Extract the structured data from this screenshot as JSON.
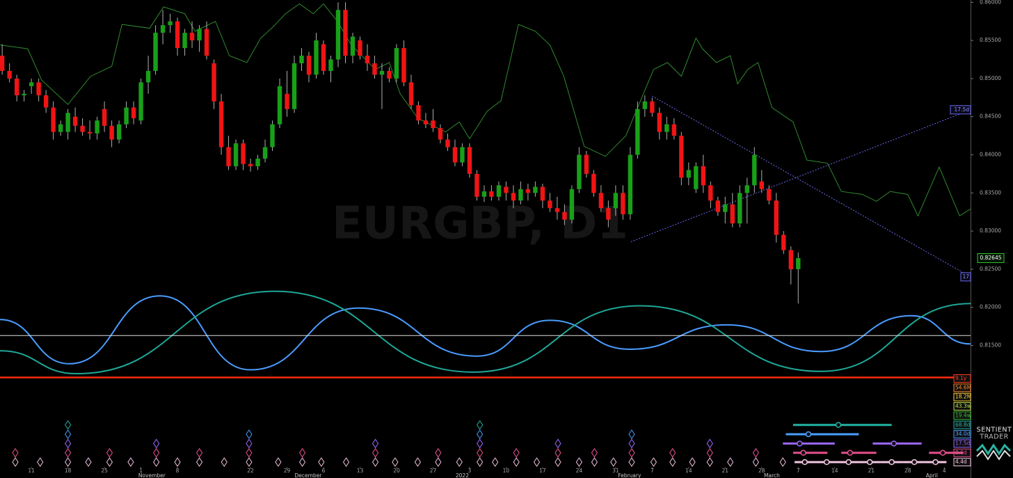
{
  "chart_data": {
    "type": "candlestick",
    "watermark": "EURGBP, D1",
    "logo": {
      "line1": "SENTIENT",
      "line2": "TRADER"
    },
    "up_color": "#18a018",
    "down_color": "#f01414",
    "xlim": [
      -0.3,
      132.6
    ],
    "ylim": [
      0.8103,
      0.8603
    ],
    "yticks": [
      {
        "value": 0.86,
        "label": "0.86000"
      },
      {
        "value": 0.855,
        "label": "0.85500"
      },
      {
        "value": 0.85,
        "label": "0.85000"
      },
      {
        "value": 0.845,
        "label": "0.84500"
      },
      {
        "value": 0.84,
        "label": "0.84000"
      },
      {
        "value": 0.835,
        "label": "0.83500"
      },
      {
        "value": 0.83,
        "label": "0.83000"
      },
      {
        "value": 0.825,
        "label": "0.82500"
      },
      {
        "value": 0.82,
        "label": "0.82000"
      },
      {
        "value": 0.815,
        "label": "0.81500"
      }
    ],
    "xticks": [
      {
        "value": 4,
        "label": "11"
      },
      {
        "value": 9,
        "label": "18"
      },
      {
        "value": 14,
        "label": "25"
      },
      {
        "value": 19,
        "label": "1"
      },
      {
        "value": 24,
        "label": "8"
      },
      {
        "value": 34,
        "label": "22"
      },
      {
        "value": 39,
        "label": "29"
      },
      {
        "value": 44,
        "label": "6"
      },
      {
        "value": 49,
        "label": "13"
      },
      {
        "value": 54,
        "label": "20"
      },
      {
        "value": 59,
        "label": "27"
      },
      {
        "value": 64,
        "label": "3"
      },
      {
        "value": 69,
        "label": "10"
      },
      {
        "value": 74,
        "label": "17"
      },
      {
        "value": 79,
        "label": "24"
      },
      {
        "value": 84,
        "label": "31"
      },
      {
        "value": 89,
        "label": "7"
      },
      {
        "value": 94,
        "label": "14"
      },
      {
        "value": 99,
        "label": "21"
      },
      {
        "value": 104,
        "label": "28"
      },
      {
        "value": 109,
        "label": "7"
      },
      {
        "value": 114,
        "label": "14"
      },
      {
        "value": 119,
        "label": "21"
      },
      {
        "value": 124,
        "label": "28"
      },
      {
        "value": 129,
        "label": "4"
      }
    ],
    "xticks_major": [
      {
        "value": 20.5,
        "label": "November"
      },
      {
        "value": 41.9,
        "label": "December"
      },
      {
        "value": 63,
        "label": "2022"
      },
      {
        "value": 85.9,
        "label": "February"
      },
      {
        "value": 105.4,
        "label": "March"
      },
      {
        "value": 127.3,
        "label": "April"
      }
    ],
    "open": [
      0.853,
      0.851,
      0.85,
      0.8478,
      0.849,
      0.8495,
      0.8478,
      0.8462,
      0.843,
      0.843,
      0.845,
      0.8438,
      0.843,
      0.8428,
      0.846,
      0.8438,
      0.842,
      0.844,
      0.8462,
      0.8445,
      0.8495,
      0.851,
      0.856,
      0.857,
      0.8575,
      0.854,
      0.856,
      0.855,
      0.8565,
      0.852,
      0.847,
      0.841,
      0.8385,
      0.8415,
      0.8388,
      0.8385,
      0.8395,
      0.841,
      0.844,
      0.848,
      0.846,
      0.852,
      0.853,
      0.8505,
      0.8545,
      0.851,
      0.8525,
      0.859,
      0.853,
      0.855,
      0.853,
      0.852,
      0.8505,
      0.851,
      0.85,
      0.854,
      0.8495,
      0.8465,
      0.8445,
      0.8445,
      0.8435,
      0.842,
      0.841,
      0.839,
      0.841,
      0.8375,
      0.8345,
      0.8352,
      0.8345,
      0.8358,
      0.835,
      0.834,
      0.8355,
      0.835,
      0.8358,
      0.834,
      0.833,
      0.8325,
      0.8315,
      0.8355,
      0.84,
      0.8375,
      0.835,
      0.833,
      0.833,
      0.835,
      0.8322,
      0.84,
      0.846,
      0.847,
      0.8455,
      0.843,
      0.844,
      0.8425,
      0.837,
      0.8355,
      0.8385,
      0.836,
      0.834,
      0.8325,
      0.8335,
      0.831,
      0.835,
      0.836,
      0.8365,
      0.8355,
      0.834,
      0.8295,
      0.8275,
      0.825
    ],
    "high": [
      0.8545,
      0.852,
      0.8505,
      0.8485,
      0.85,
      0.85,
      0.8485,
      0.847,
      0.8445,
      0.846,
      0.8462,
      0.8448,
      0.8445,
      0.845,
      0.847,
      0.8445,
      0.8445,
      0.847,
      0.847,
      0.85,
      0.853,
      0.857,
      0.859,
      0.8585,
      0.858,
      0.8565,
      0.8575,
      0.857,
      0.8575,
      0.8525,
      0.848,
      0.8425,
      0.842,
      0.842,
      0.8395,
      0.84,
      0.842,
      0.8445,
      0.85,
      0.851,
      0.853,
      0.854,
      0.8535,
      0.856,
      0.855,
      0.853,
      0.86,
      0.86,
      0.856,
      0.8555,
      0.8545,
      0.853,
      0.852,
      0.8515,
      0.8545,
      0.855,
      0.8505,
      0.847,
      0.8455,
      0.846,
      0.844,
      0.8428,
      0.842,
      0.8415,
      0.8415,
      0.838,
      0.836,
      0.836,
      0.8365,
      0.8365,
      0.836,
      0.8365,
      0.8362,
      0.8365,
      0.8362,
      0.835,
      0.8345,
      0.8335,
      0.836,
      0.841,
      0.8405,
      0.838,
      0.836,
      0.834,
      0.836,
      0.836,
      0.841,
      0.847,
      0.8478,
      0.8475,
      0.8462,
      0.845,
      0.8448,
      0.843,
      0.839,
      0.839,
      0.84,
      0.8365,
      0.8345,
      0.8345,
      0.835,
      0.836,
      0.837,
      0.841,
      0.838,
      0.836,
      0.835,
      0.83,
      0.828,
      0.8272
    ],
    "low": [
      0.8505,
      0.8495,
      0.847,
      0.847,
      0.848,
      0.847,
      0.8455,
      0.842,
      0.8425,
      0.842,
      0.843,
      0.8425,
      0.842,
      0.842,
      0.843,
      0.841,
      0.8415,
      0.8435,
      0.844,
      0.844,
      0.848,
      0.8505,
      0.8545,
      0.856,
      0.853,
      0.853,
      0.854,
      0.8535,
      0.8525,
      0.846,
      0.84,
      0.838,
      0.838,
      0.838,
      0.8378,
      0.838,
      0.839,
      0.8405,
      0.8435,
      0.845,
      0.8455,
      0.851,
      0.8495,
      0.85,
      0.8505,
      0.8495,
      0.8515,
      0.852,
      0.852,
      0.8525,
      0.851,
      0.85,
      0.846,
      0.8495,
      0.8495,
      0.849,
      0.846,
      0.844,
      0.8435,
      0.843,
      0.8415,
      0.8405,
      0.8385,
      0.8385,
      0.837,
      0.834,
      0.8338,
      0.834,
      0.834,
      0.834,
      0.833,
      0.8335,
      0.834,
      0.8345,
      0.833,
      0.8325,
      0.8315,
      0.8308,
      0.831,
      0.835,
      0.837,
      0.8345,
      0.8325,
      0.8305,
      0.832,
      0.8315,
      0.8315,
      0.8395,
      0.845,
      0.845,
      0.842,
      0.842,
      0.842,
      0.836,
      0.836,
      0.835,
      0.835,
      0.833,
      0.832,
      0.831,
      0.8305,
      0.8305,
      0.831,
      0.835,
      0.835,
      0.8335,
      0.8285,
      0.827,
      0.823,
      0.8205
    ],
    "close": [
      0.851,
      0.85,
      0.8478,
      0.848,
      0.8495,
      0.8478,
      0.8462,
      0.843,
      0.844,
      0.8455,
      0.8438,
      0.843,
      0.8428,
      0.8445,
      0.8438,
      0.842,
      0.844,
      0.8462,
      0.8448,
      0.8495,
      0.851,
      0.856,
      0.857,
      0.8575,
      0.854,
      0.856,
      0.855,
      0.8565,
      0.853,
      0.847,
      0.841,
      0.8385,
      0.8415,
      0.8388,
      0.8385,
      0.8395,
      0.841,
      0.844,
      0.849,
      0.846,
      0.852,
      0.853,
      0.8505,
      0.855,
      0.851,
      0.8525,
      0.859,
      0.853,
      0.8555,
      0.853,
      0.852,
      0.8505,
      0.851,
      0.85,
      0.854,
      0.8495,
      0.8465,
      0.8445,
      0.844,
      0.8435,
      0.842,
      0.841,
      0.839,
      0.841,
      0.8375,
      0.8345,
      0.8352,
      0.8345,
      0.836,
      0.835,
      0.834,
      0.8355,
      0.835,
      0.8358,
      0.834,
      0.833,
      0.8325,
      0.8315,
      0.8355,
      0.84,
      0.8375,
      0.835,
      0.833,
      0.8315,
      0.835,
      0.8322,
      0.84,
      0.846,
      0.847,
      0.8455,
      0.843,
      0.844,
      0.8425,
      0.837,
      0.838,
      0.8385,
      0.836,
      0.834,
      0.8325,
      0.8335,
      0.831,
      0.835,
      0.836,
      0.84,
      0.8355,
      0.834,
      0.8295,
      0.8275,
      0.825,
      0.82645
    ],
    "last_price": {
      "value": 0.82645,
      "label": "0.82645",
      "color": "#2ec02e"
    },
    "indicator": {
      "color": "#2f8a2f",
      "x": [
        -0.3,
        3.5,
        5.4,
        9.0,
        12.1,
        15.0,
        16.4,
        20.2,
        22.1,
        25.0,
        26.4,
        29.2,
        31.1,
        33.5,
        35.4,
        36.9,
        38.8,
        40.7,
        42.6,
        44.0,
        45.9,
        47.8,
        51.1,
        53.0,
        54.5,
        56.9,
        60.7,
        62.6,
        64.0,
        66.4,
        68.3,
        70.7,
        73.0,
        75.0,
        76.9,
        79.7,
        82.6,
        85.4,
        87.8,
        89.2,
        91.1,
        93.0,
        95.0,
        95.9,
        97.8,
        99.7,
        100.7,
        102.1,
        103.5,
        105.4,
        108.3,
        110.2,
        113.0,
        114.9,
        117.8,
        119.7,
        121.6,
        124.0,
        125.4,
        128.3,
        131.1,
        132.6
      ],
      "values": [
        0.8544,
        0.8539,
        0.8498,
        0.8466,
        0.8503,
        0.8516,
        0.8571,
        0.8566,
        0.8594,
        0.8585,
        0.8562,
        0.8575,
        0.853,
        0.8521,
        0.8553,
        0.8566,
        0.8585,
        0.8598,
        0.8585,
        0.8598,
        0.8575,
        0.8544,
        0.8512,
        0.8521,
        0.848,
        0.8448,
        0.843,
        0.8443,
        0.8421,
        0.8457,
        0.8471,
        0.8571,
        0.8562,
        0.8544,
        0.8503,
        0.8411,
        0.8398,
        0.8425,
        0.848,
        0.8512,
        0.8521,
        0.8503,
        0.8553,
        0.8539,
        0.8521,
        0.853,
        0.8493,
        0.8512,
        0.8521,
        0.8462,
        0.8443,
        0.8393,
        0.8389,
        0.8352,
        0.8348,
        0.8339,
        0.8352,
        0.8348,
        0.832,
        0.8384,
        0.832,
        0.8329
      ]
    },
    "trendlines": [
      {
        "color": "#6a6af0",
        "x": [
          89,
          132.6
        ],
        "values": [
          0.8477,
          0.824
        ],
        "label": "17"
      },
      {
        "color": "#6a6af0",
        "x": [
          86.1,
          132.6
        ],
        "values": [
          0.8286,
          0.8459
        ],
        "label": "17.5d"
      }
    ],
    "waves": [
      {
        "color": "#4a9cff",
        "x": [
          -0.3,
          9.2,
          21.6,
          34.0,
          48.8,
          65.0,
          75.0,
          85.9,
          99.2,
          112.1,
          124.5,
          132.6
        ],
        "values": [
          0.8184,
          0.8126,
          0.8215,
          0.8118,
          0.8199,
          0.8136,
          0.8183,
          0.8145,
          0.8177,
          0.8142,
          0.8189,
          0.8152
        ]
      },
      {
        "color": "#1ea898",
        "x": [
          -0.3,
          10.2,
          37.3,
          64.5,
          87.3,
          112.1,
          132.6
        ],
        "values": [
          0.8143,
          0.8113,
          0.8221,
          0.8115,
          0.8202,
          0.8116,
          0.8205
        ]
      }
    ],
    "levels": [
      {
        "value": 0.8163,
        "color": "#e0e0e0"
      },
      {
        "value": 0.8108,
        "color": "#ff2a10"
      }
    ],
    "cycles": [
      {
        "label": "9.1y",
        "color": "#ff3b1f"
      },
      {
        "label": "54.6M",
        "color": "#ff8a2a"
      },
      {
        "label": "18.2M",
        "color": "#ffd23a"
      },
      {
        "label": "43.3w",
        "color": "#b5e04a"
      },
      {
        "label": "19.4w",
        "color": "#3ec23e"
      },
      {
        "label": "68.8d",
        "color": "#23b3a3",
        "troughs": [
          9.0,
          65.4
        ],
        "projections": [
          [
            108.3,
            114.5,
            121.8
          ]
        ]
      },
      {
        "label": "34.0d",
        "color": "#4aa0ff",
        "troughs": [
          9.0,
          33.8,
          65.4,
          86.2
        ],
        "projections": [
          [
            107.3,
            110.4,
            117.3
          ]
        ]
      },
      {
        "label": "17.5d",
        "color": "#9a66ff",
        "troughs": [
          9.0,
          21.1,
          33.8,
          51.1,
          65.4,
          76.1,
          86.2,
          96.9
        ],
        "projections": [
          [
            106.9,
            109.2,
            114.0
          ],
          [
            119.2,
            122.1,
            125.9
          ]
        ]
      },
      {
        "label": "8.6d",
        "color": "#e8508e",
        "troughs": [
          1.8,
          9.0,
          14.7,
          21.1,
          27.0,
          33.8,
          41.1,
          51.1,
          59.7,
          65.4,
          70.4,
          76.1,
          81.1,
          86.2,
          91.8,
          96.9,
          103.2
        ],
        "projections": [
          [
            108.3,
            109.7,
            113.0
          ],
          [
            114.9,
            116.1,
            119.7
          ],
          [
            126.9,
            128.8,
            131.6
          ]
        ]
      },
      {
        "label": "4.4d",
        "color": "#f3c6e2",
        "troughs": [
          1.8,
          5.2,
          9.0,
          11.8,
          14.7,
          17.6,
          21.1,
          24.0,
          27.0,
          30.4,
          33.8,
          37.8,
          41.1,
          43.7,
          47.1,
          51.1,
          53.8,
          56.9,
          59.7,
          62.6,
          65.4,
          67.5,
          70.4,
          73.2,
          76.1,
          79.0,
          81.1,
          83.7,
          86.2,
          89.2,
          91.8,
          94.5,
          96.9,
          99.7,
          103.2,
          106.9
        ],
        "projections": [
          [
            108.5,
            109.9,
            111.4
          ],
          [
            111.4,
            112.9,
            114.4
          ],
          [
            114.4,
            115.9,
            117.3
          ],
          [
            117.3,
            118.8,
            120.3
          ],
          [
            120.3,
            121.8,
            123.3
          ],
          [
            123.3,
            124.9,
            126.3
          ],
          [
            126.3,
            127.8,
            129.3
          ]
        ]
      }
    ]
  }
}
